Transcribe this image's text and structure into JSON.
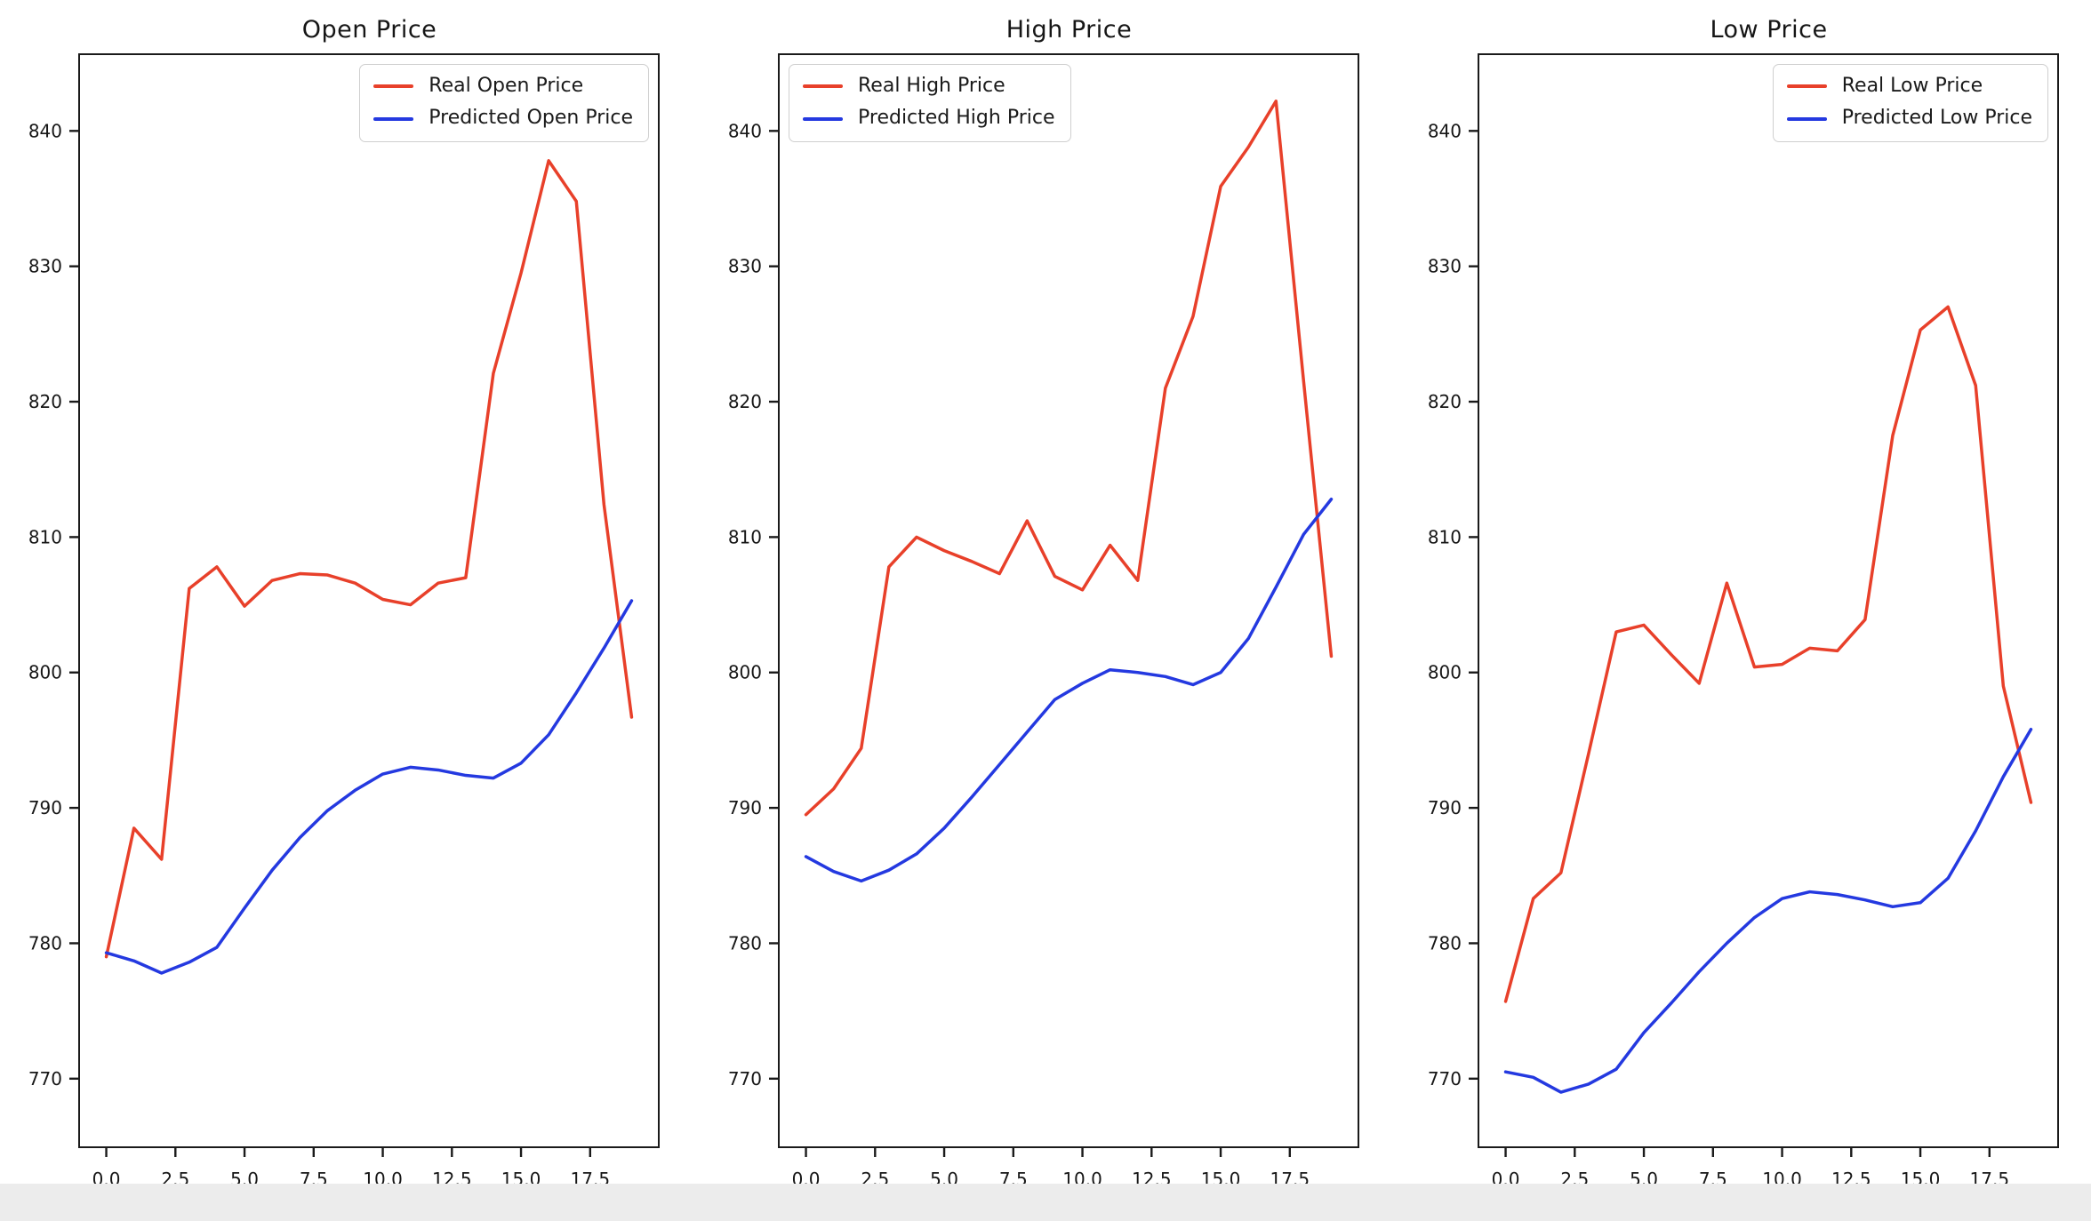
{
  "style": {
    "real_color": "#e8402a",
    "predicted_color": "#2439e0",
    "axis_color": "#1a1a1a",
    "tick_label_color": "#161616",
    "legend_border_color": "#cfcfcf",
    "footer_strip_color": "#ececec"
  },
  "chart_data": [
    {
      "type": "line",
      "title": "Open Price",
      "x": [
        0,
        1,
        2,
        3,
        4,
        5,
        6,
        7,
        8,
        9,
        10,
        11,
        12,
        13,
        14,
        15,
        16,
        17,
        18,
        19
      ],
      "series": [
        {
          "name": "Real Open Price",
          "color": "#e8402a",
          "values": [
            779.0,
            788.5,
            786.2,
            806.2,
            807.8,
            804.9,
            806.8,
            807.3,
            807.2,
            806.6,
            805.4,
            805.0,
            806.6,
            807.0,
            822.1,
            829.5,
            837.8,
            834.8,
            812.4,
            796.7
          ]
        },
        {
          "name": "Predicted Open Price",
          "color": "#2439e0",
          "values": [
            779.3,
            778.7,
            777.8,
            778.6,
            779.7,
            782.6,
            785.4,
            787.8,
            789.8,
            791.3,
            792.5,
            793.0,
            792.8,
            792.4,
            792.2,
            793.3,
            795.4,
            798.5,
            801.8,
            805.3
          ]
        }
      ],
      "legend_position": "upper-right",
      "x_ticks": [
        0,
        2.5,
        5,
        7.5,
        10,
        12.5,
        15,
        17.5
      ],
      "x_tick_labels": [
        "0.0",
        "2.5",
        "5.0",
        "7.5",
        "10.0",
        "12.5",
        "15.0",
        "17.5"
      ],
      "y_ticks": [
        770,
        780,
        790,
        800,
        810,
        820,
        830,
        840
      ],
      "y_tick_labels": [
        "770",
        "780",
        "790",
        "800",
        "810",
        "820",
        "830",
        "840"
      ],
      "xlim": [
        -0.95,
        19.95
      ],
      "ylim": [
        765.0,
        845.6
      ],
      "grid": false
    },
    {
      "type": "line",
      "title": "High Price",
      "x": [
        0,
        1,
        2,
        3,
        4,
        5,
        6,
        7,
        8,
        9,
        10,
        11,
        12,
        13,
        14,
        15,
        16,
        17,
        18,
        19
      ],
      "series": [
        {
          "name": "Real High Price",
          "color": "#e8402a",
          "values": [
            789.5,
            791.4,
            794.4,
            807.8,
            810.0,
            809.0,
            808.2,
            807.3,
            811.2,
            807.1,
            806.1,
            809.4,
            806.8,
            821.0,
            826.3,
            835.9,
            838.8,
            842.2,
            821.5,
            801.2
          ]
        },
        {
          "name": "Predicted High Price",
          "color": "#2439e0",
          "values": [
            786.4,
            785.3,
            784.6,
            785.4,
            786.6,
            788.5,
            790.8,
            793.2,
            795.6,
            798.0,
            799.2,
            800.2,
            800.0,
            799.7,
            799.1,
            800.0,
            802.5,
            806.3,
            810.2,
            812.8
          ]
        }
      ],
      "legend_position": "upper-left",
      "x_ticks": [
        0,
        2.5,
        5,
        7.5,
        10,
        12.5,
        15,
        17.5
      ],
      "x_tick_labels": [
        "0.0",
        "2.5",
        "5.0",
        "7.5",
        "10.0",
        "12.5",
        "15.0",
        "17.5"
      ],
      "y_ticks": [
        770,
        780,
        790,
        800,
        810,
        820,
        830,
        840
      ],
      "y_tick_labels": [
        "770",
        "780",
        "790",
        "800",
        "810",
        "820",
        "830",
        "840"
      ],
      "xlim": [
        -0.95,
        19.95
      ],
      "ylim": [
        765.0,
        845.6
      ],
      "grid": false
    },
    {
      "type": "line",
      "title": "Low Price",
      "x": [
        0,
        1,
        2,
        3,
        4,
        5,
        6,
        7,
        8,
        9,
        10,
        11,
        12,
        13,
        14,
        15,
        16,
        17,
        18,
        19
      ],
      "series": [
        {
          "name": "Real Low Price",
          "color": "#e8402a",
          "values": [
            775.7,
            783.3,
            785.2,
            794.0,
            803.0,
            803.5,
            801.3,
            799.2,
            806.6,
            800.4,
            800.6,
            801.8,
            801.6,
            803.9,
            817.5,
            825.3,
            827.0,
            821.2,
            799.0,
            790.4
          ]
        },
        {
          "name": "Predicted Low Price",
          "color": "#2439e0",
          "values": [
            770.5,
            770.1,
            769.0,
            769.6,
            770.7,
            773.4,
            775.6,
            777.9,
            780.0,
            781.9,
            783.3,
            783.8,
            783.6,
            783.2,
            782.7,
            783.0,
            784.8,
            788.3,
            792.3,
            795.8
          ]
        }
      ],
      "legend_position": "upper-right",
      "x_ticks": [
        0,
        2.5,
        5,
        7.5,
        10,
        12.5,
        15,
        17.5
      ],
      "x_tick_labels": [
        "0.0",
        "2.5",
        "5.0",
        "7.5",
        "10.0",
        "12.5",
        "15.0",
        "17.5"
      ],
      "y_ticks": [
        770,
        780,
        790,
        800,
        810,
        820,
        830,
        840
      ],
      "y_tick_labels": [
        "770",
        "780",
        "790",
        "800",
        "810",
        "820",
        "830",
        "840"
      ],
      "xlim": [
        -0.95,
        19.95
      ],
      "ylim": [
        765.0,
        845.6
      ],
      "grid": false
    }
  ]
}
